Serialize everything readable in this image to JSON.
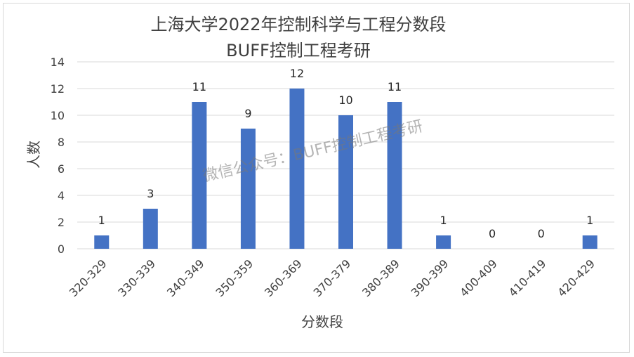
{
  "chart_data": {
    "type": "bar",
    "title": "上海大学2022年控制科学与工程分数段",
    "subtitle": "BUFF控制工程考研",
    "xlabel": "分数段",
    "ylabel": "人数",
    "categories": [
      "320-329",
      "330-339",
      "340-349",
      "350-359",
      "360-369",
      "370-379",
      "380-389",
      "390-399",
      "400-409",
      "410-419",
      "420-429"
    ],
    "values": [
      1,
      3,
      11,
      9,
      12,
      10,
      11,
      1,
      0,
      0,
      1
    ],
    "ylim": [
      0,
      14
    ],
    "yticks": [
      0,
      2,
      4,
      6,
      8,
      10,
      12,
      14
    ],
    "grid": true,
    "data_labels": true,
    "bar_color": "#4472c4",
    "gridline_color": "#d9d9d9"
  },
  "watermark": "微信公众号：BUFF控制工程考研"
}
